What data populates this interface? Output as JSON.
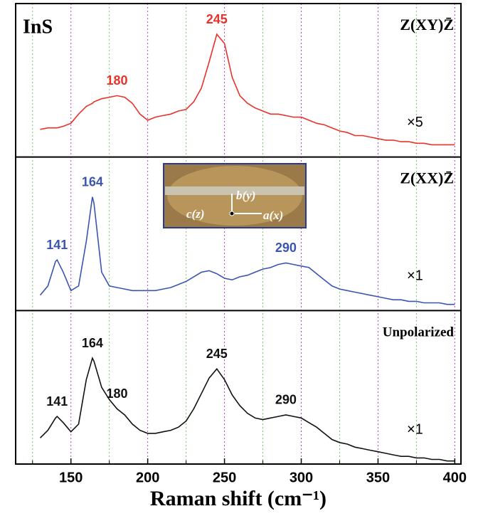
{
  "chart_data": {
    "type": "line",
    "title": "InS",
    "x_label": "Raman shift (cm⁻¹)",
    "x": [
      130,
      135,
      140,
      141,
      145,
      150,
      155,
      160,
      164,
      165,
      170,
      175,
      180,
      185,
      190,
      195,
      200,
      205,
      210,
      215,
      220,
      225,
      230,
      235,
      240,
      245,
      250,
      255,
      260,
      265,
      270,
      275,
      280,
      285,
      290,
      295,
      300,
      305,
      310,
      315,
      320,
      325,
      330,
      335,
      340,
      345,
      350,
      355,
      360,
      365,
      370,
      375,
      380,
      385,
      390,
      395,
      400
    ],
    "xlim": [
      114,
      404
    ],
    "xticks": [
      150,
      200,
      250,
      300,
      350,
      400
    ],
    "minor_xticks": [
      125,
      175,
      225,
      275,
      325,
      375
    ],
    "ylim": [
      0,
      1
    ],
    "grid": true,
    "series": [
      {
        "name": "Z(XY)Z̄",
        "color": "#e8322a",
        "scale_label": "×5",
        "peak_labels": [
          180,
          245
        ],
        "values": [
          0.18,
          0.19,
          0.19,
          0.19,
          0.2,
          0.22,
          0.28,
          0.33,
          0.35,
          0.36,
          0.38,
          0.39,
          0.4,
          0.39,
          0.35,
          0.28,
          0.24,
          0.26,
          0.27,
          0.28,
          0.3,
          0.31,
          0.36,
          0.45,
          0.62,
          0.8,
          0.74,
          0.52,
          0.4,
          0.35,
          0.32,
          0.3,
          0.28,
          0.28,
          0.27,
          0.26,
          0.26,
          0.24,
          0.22,
          0.21,
          0.19,
          0.17,
          0.16,
          0.14,
          0.14,
          0.13,
          0.12,
          0.11,
          0.11,
          0.1,
          0.1,
          0.09,
          0.09,
          0.08,
          0.08,
          0.08,
          0.08
        ]
      },
      {
        "name": "Z(XX)Z̄",
        "color": "#3a55b0",
        "scale_label": "×1",
        "peak_labels": [
          141,
          164,
          290
        ],
        "values": [
          0.1,
          0.16,
          0.32,
          0.33,
          0.25,
          0.13,
          0.16,
          0.45,
          0.74,
          0.7,
          0.25,
          0.16,
          0.15,
          0.14,
          0.13,
          0.13,
          0.13,
          0.13,
          0.14,
          0.15,
          0.17,
          0.19,
          0.22,
          0.25,
          0.26,
          0.24,
          0.21,
          0.2,
          0.22,
          0.23,
          0.25,
          0.27,
          0.28,
          0.3,
          0.31,
          0.3,
          0.29,
          0.28,
          0.24,
          0.2,
          0.16,
          0.14,
          0.13,
          0.12,
          0.11,
          0.1,
          0.09,
          0.08,
          0.07,
          0.07,
          0.06,
          0.06,
          0.05,
          0.05,
          0.05,
          0.04,
          0.04
        ]
      },
      {
        "name": "Unpolarized",
        "color": "#111111",
        "scale_label": "×1",
        "peak_labels": [
          141,
          164,
          180,
          245,
          290
        ],
        "values": [
          0.17,
          0.22,
          0.3,
          0.31,
          0.27,
          0.21,
          0.26,
          0.55,
          0.69,
          0.67,
          0.5,
          0.42,
          0.36,
          0.32,
          0.26,
          0.22,
          0.2,
          0.2,
          0.21,
          0.22,
          0.24,
          0.28,
          0.36,
          0.46,
          0.56,
          0.62,
          0.55,
          0.45,
          0.38,
          0.33,
          0.3,
          0.29,
          0.3,
          0.31,
          0.32,
          0.31,
          0.3,
          0.27,
          0.24,
          0.2,
          0.16,
          0.14,
          0.13,
          0.11,
          0.1,
          0.09,
          0.08,
          0.07,
          0.06,
          0.05,
          0.05,
          0.04,
          0.04,
          0.03,
          0.03,
          0.02,
          0.02
        ]
      }
    ]
  },
  "inset": {
    "labels": [
      "b(y)",
      "c(z)",
      "a(x)"
    ]
  }
}
